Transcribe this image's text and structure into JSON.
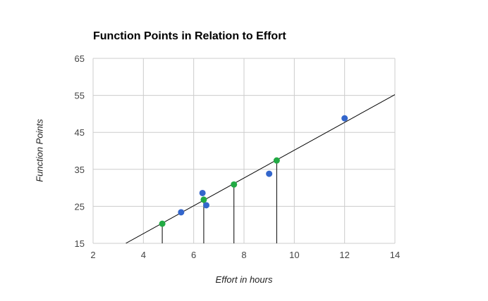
{
  "chart_data": {
    "type": "scatter",
    "title": "Function Points in Relation to Effort",
    "xlabel": "Effort in hours",
    "ylabel": "Function Points",
    "xlim": [
      2,
      14
    ],
    "ylim": [
      15,
      65
    ],
    "x_ticks": [
      2,
      4,
      6,
      8,
      10,
      12,
      14
    ],
    "y_ticks": [
      15,
      25,
      35,
      45,
      55,
      65
    ],
    "grid": true,
    "legend": "none",
    "series": [
      {
        "color": "#3366cc",
        "points": [
          {
            "x": 5.5,
            "y": 23.4
          },
          {
            "x": 6.35,
            "y": 28.6
          },
          {
            "x": 6.5,
            "y": 25.3
          },
          {
            "x": 9.0,
            "y": 33.8
          },
          {
            "x": 12.0,
            "y": 48.8
          }
        ]
      },
      {
        "color": "#22aa44",
        "points": [
          {
            "x": 4.75,
            "y": 20.3
          },
          {
            "x": 6.4,
            "y": 26.8
          },
          {
            "x": 7.6,
            "y": 30.9
          },
          {
            "x": 9.3,
            "y": 37.4
          }
        ]
      }
    ],
    "trendline": {
      "color": "#000000",
      "from": {
        "x": 3.3,
        "y": 15
      },
      "to": {
        "x": 14,
        "y": 55.2
      }
    },
    "drop_lines": [
      {
        "x": 4.75,
        "y": 20.3
      },
      {
        "x": 6.4,
        "y": 26.8
      },
      {
        "x": 7.6,
        "y": 30.9
      },
      {
        "x": 9.3,
        "y": 37.4
      }
    ],
    "colors": {
      "grid": "#cccccc",
      "axis_text": "#444444"
    }
  }
}
